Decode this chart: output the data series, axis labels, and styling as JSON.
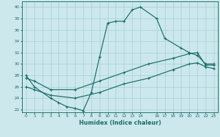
{
  "title": "",
  "xlabel": "Humidex (Indice chaleur)",
  "xlim": [
    -0.5,
    23.5
  ],
  "ylim": [
    21.5,
    41
  ],
  "yticks": [
    22,
    24,
    26,
    28,
    30,
    32,
    34,
    36,
    38,
    40
  ],
  "xticks": [
    0,
    1,
    2,
    3,
    4,
    5,
    6,
    7,
    8,
    9,
    10,
    11,
    12,
    13,
    14,
    16,
    17,
    18,
    19,
    20,
    21,
    22,
    23
  ],
  "bg_color": "#cce8ec",
  "grid_color": "#9fcdd4",
  "line_color": "#1a6b6b",
  "line1_x": [
    0,
    1,
    3,
    4,
    5,
    6,
    7,
    8,
    9,
    10,
    11,
    12,
    13,
    14,
    16,
    17,
    19,
    20,
    21,
    22,
    23
  ],
  "line1_y": [
    28,
    26,
    24,
    23.2,
    22.5,
    22.2,
    21.8,
    25.0,
    31.2,
    37.2,
    37.5,
    37.5,
    39.5,
    40.0,
    38.0,
    34.5,
    32.8,
    32.0,
    31.5,
    30.0,
    30.0
  ],
  "line2_x": [
    0,
    1,
    3,
    6,
    9,
    12,
    15,
    18,
    20,
    21,
    22,
    23
  ],
  "line2_y": [
    27.5,
    27.0,
    25.5,
    25.5,
    27.0,
    28.5,
    30.0,
    31.0,
    31.8,
    32.0,
    29.8,
    29.8
  ],
  "line3_x": [
    0,
    1,
    3,
    6,
    9,
    12,
    15,
    18,
    20,
    21,
    22,
    23
  ],
  "line3_y": [
    26.0,
    25.5,
    24.5,
    24.0,
    25.0,
    26.5,
    27.5,
    29.0,
    30.0,
    30.2,
    29.5,
    29.2
  ],
  "marker": "+",
  "markersize": 3,
  "linewidth": 0.9
}
